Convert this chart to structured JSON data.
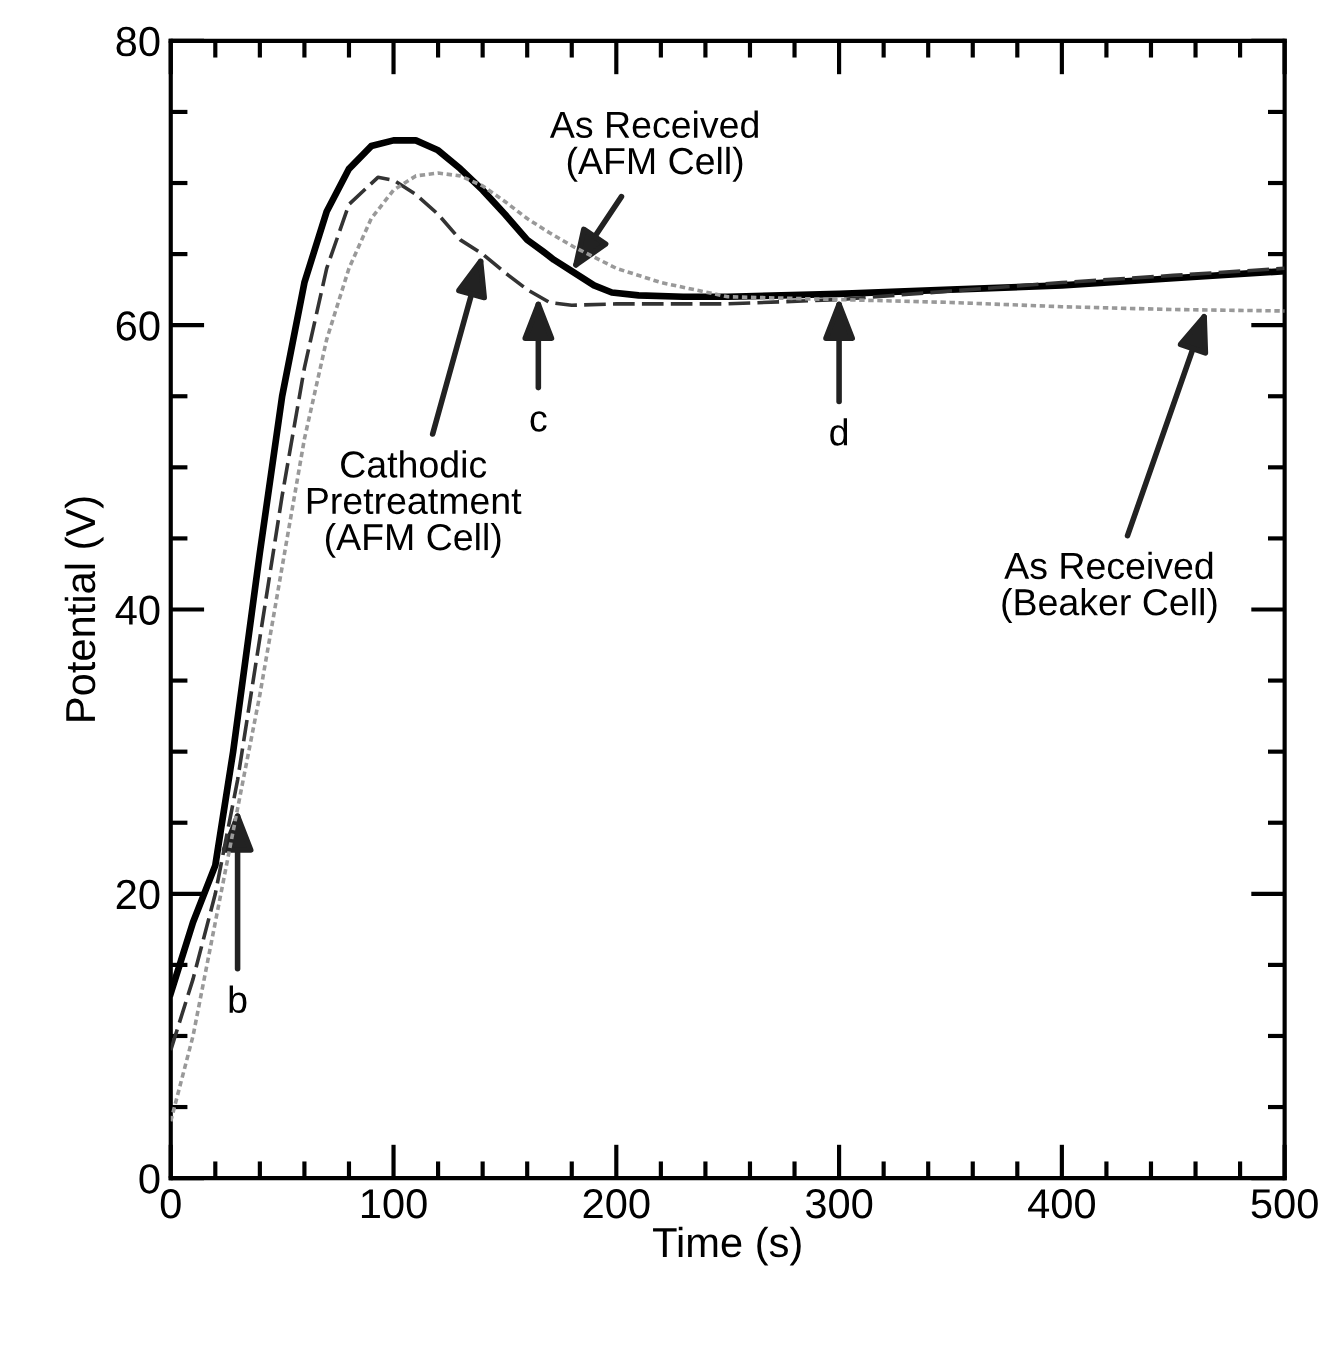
{
  "chart_data": {
    "type": "line",
    "xlabel": "Time (s)",
    "ylabel": "Potential (V)",
    "xlim": [
      0,
      500
    ],
    "ylim": [
      0,
      80
    ],
    "xticks": [
      0,
      100,
      200,
      300,
      400,
      500
    ],
    "yticks": [
      0,
      20,
      40,
      60,
      80
    ],
    "grid": false,
    "legend": false,
    "marker": "none",
    "series": [
      {
        "color": "#000000",
        "line_style": "solid",
        "x": [
          0,
          10,
          20,
          28,
          40,
          50,
          60,
          70,
          80,
          90,
          100,
          110,
          120,
          130,
          140,
          150,
          160,
          167,
          172,
          180,
          190,
          198,
          210,
          230,
          250,
          300,
          350,
          400,
          450,
          500
        ],
        "values": [
          13,
          18,
          22,
          30,
          44,
          55,
          63,
          68,
          71,
          72.6,
          73,
          73,
          72.3,
          71,
          69.5,
          67.8,
          66,
          65.2,
          64.6,
          63.8,
          62.8,
          62.3,
          62.1,
          62,
          62,
          62.2,
          62.5,
          62.8,
          63.3,
          63.8
        ]
      },
      {
        "color": "#333333",
        "line_style": "dashed",
        "x": [
          0,
          10,
          20,
          30,
          40,
          50,
          60,
          70,
          80,
          93,
          100,
          110,
          120,
          130,
          140,
          150,
          160,
          170,
          180,
          200,
          250,
          300,
          350,
          400,
          450,
          500
        ],
        "values": [
          9,
          14,
          20,
          28,
          38,
          48,
          57,
          64,
          68.5,
          70.4,
          70.2,
          69.2,
          67.8,
          66,
          65,
          63.7,
          62.5,
          61.6,
          61.4,
          61.5,
          61.5,
          61.8,
          62.4,
          63,
          63.5,
          64
        ]
      },
      {
        "color": "#999999",
        "line_style": "dotted",
        "x": [
          0,
          10,
          20,
          30,
          40,
          50,
          60,
          70,
          80,
          90,
          100,
          110,
          120,
          130,
          140,
          150,
          160,
          170,
          181,
          200,
          220,
          250,
          300,
          350,
          400,
          450,
          500
        ],
        "values": [
          4,
          10,
          18,
          26,
          34,
          43,
          52,
          59,
          64,
          67.5,
          69.5,
          70.5,
          70.7,
          70.5,
          69.8,
          68.7,
          67.5,
          66.5,
          65.5,
          64,
          63,
          62,
          61.8,
          61.6,
          61.3,
          61.1,
          61
        ]
      }
    ],
    "annotations": [
      {
        "text": "As Received\n(AFM Cell)",
        "x": 180,
        "y": 63.8
      },
      {
        "text": "Cathodic\nPretreatment\n(AFM Cell)",
        "x": 140,
        "y": 65
      },
      {
        "text": "b",
        "x": 30,
        "y": 26
      },
      {
        "text": "c",
        "x": 165,
        "y": 62
      },
      {
        "text": "d",
        "x": 300,
        "y": 62
      },
      {
        "text": "As Received\n(Beaker Cell)",
        "x": 465,
        "y": 61.1
      }
    ]
  }
}
